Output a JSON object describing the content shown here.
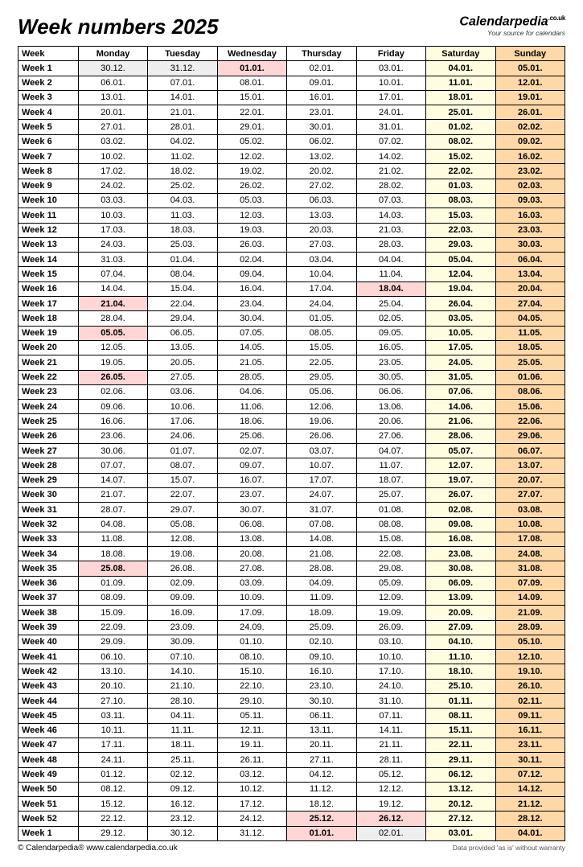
{
  "title": "Week numbers 2025",
  "brand": {
    "name": "Calendarpedia",
    "domain": ".co.uk",
    "tagline": "Your source for calendars"
  },
  "columns": [
    "Week",
    "Monday",
    "Tuesday",
    "Wednesday",
    "Thursday",
    "Friday",
    "Saturday",
    "Sunday"
  ],
  "colors": {
    "saturday_bg": "#fffce0",
    "sunday_bg": "#ffd8a8",
    "holiday_bg": "#ffd6d6",
    "prev_bg": "#eeeeee",
    "border": "#000000",
    "background": "#ffffff"
  },
  "footer": {
    "left": "© Calendarpedia®   www.calendarpedia.co.uk",
    "right": "Data provided 'as is' without warranty"
  },
  "rows": [
    {
      "w": "Week 1",
      "d": [
        "30.12.",
        "31.12.",
        "01.01.",
        "02.01.",
        "03.01.",
        "04.01.",
        "05.01."
      ],
      "cls": [
        "prev",
        "prev",
        "holiday",
        "",
        "",
        "sat",
        "sun"
      ]
    },
    {
      "w": "Week 2",
      "d": [
        "06.01.",
        "07.01.",
        "08.01.",
        "09.01.",
        "10.01.",
        "11.01.",
        "12.01."
      ],
      "cls": [
        "",
        "",
        "",
        "",
        "",
        "sat",
        "sun"
      ]
    },
    {
      "w": "Week 3",
      "d": [
        "13.01.",
        "14.01.",
        "15.01.",
        "16.01.",
        "17.01.",
        "18.01.",
        "19.01."
      ],
      "cls": [
        "",
        "",
        "",
        "",
        "",
        "sat",
        "sun"
      ]
    },
    {
      "w": "Week 4",
      "d": [
        "20.01.",
        "21.01.",
        "22.01.",
        "23.01.",
        "24.01.",
        "25.01.",
        "26.01."
      ],
      "cls": [
        "",
        "",
        "",
        "",
        "",
        "sat",
        "sun"
      ]
    },
    {
      "w": "Week 5",
      "d": [
        "27.01.",
        "28.01.",
        "29.01.",
        "30.01.",
        "31.01.",
        "01.02.",
        "02.02."
      ],
      "cls": [
        "",
        "",
        "",
        "",
        "",
        "sat",
        "sun"
      ]
    },
    {
      "w": "Week 6",
      "d": [
        "03.02.",
        "04.02.",
        "05.02.",
        "06.02.",
        "07.02.",
        "08.02.",
        "09.02."
      ],
      "cls": [
        "",
        "",
        "",
        "",
        "",
        "sat",
        "sun"
      ]
    },
    {
      "w": "Week 7",
      "d": [
        "10.02.",
        "11.02.",
        "12.02.",
        "13.02.",
        "14.02.",
        "15.02.",
        "16.02."
      ],
      "cls": [
        "",
        "",
        "",
        "",
        "",
        "sat",
        "sun"
      ]
    },
    {
      "w": "Week 8",
      "d": [
        "17.02.",
        "18.02.",
        "19.02.",
        "20.02.",
        "21.02.",
        "22.02.",
        "23.02."
      ],
      "cls": [
        "",
        "",
        "",
        "",
        "",
        "sat",
        "sun"
      ]
    },
    {
      "w": "Week 9",
      "d": [
        "24.02.",
        "25.02.",
        "26.02.",
        "27.02.",
        "28.02.",
        "01.03.",
        "02.03."
      ],
      "cls": [
        "",
        "",
        "",
        "",
        "",
        "sat",
        "sun"
      ]
    },
    {
      "w": "Week 10",
      "d": [
        "03.03.",
        "04.03.",
        "05.03.",
        "06.03.",
        "07.03.",
        "08.03.",
        "09.03."
      ],
      "cls": [
        "",
        "",
        "",
        "",
        "",
        "sat",
        "sun"
      ]
    },
    {
      "w": "Week 11",
      "d": [
        "10.03.",
        "11.03.",
        "12.03.",
        "13.03.",
        "14.03.",
        "15.03.",
        "16.03."
      ],
      "cls": [
        "",
        "",
        "",
        "",
        "",
        "sat",
        "sun"
      ]
    },
    {
      "w": "Week 12",
      "d": [
        "17.03.",
        "18.03.",
        "19.03.",
        "20.03.",
        "21.03.",
        "22.03.",
        "23.03."
      ],
      "cls": [
        "",
        "",
        "",
        "",
        "",
        "sat",
        "sun"
      ]
    },
    {
      "w": "Week 13",
      "d": [
        "24.03.",
        "25.03.",
        "26.03.",
        "27.03.",
        "28.03.",
        "29.03.",
        "30.03."
      ],
      "cls": [
        "",
        "",
        "",
        "",
        "",
        "sat",
        "sun"
      ]
    },
    {
      "w": "Week 14",
      "d": [
        "31.03.",
        "01.04.",
        "02.04.",
        "03.04.",
        "04.04.",
        "05.04.",
        "06.04."
      ],
      "cls": [
        "",
        "",
        "",
        "",
        "",
        "sat",
        "sun"
      ]
    },
    {
      "w": "Week 15",
      "d": [
        "07.04.",
        "08.04.",
        "09.04.",
        "10.04.",
        "11.04.",
        "12.04.",
        "13.04."
      ],
      "cls": [
        "",
        "",
        "",
        "",
        "",
        "sat",
        "sun"
      ]
    },
    {
      "w": "Week 16",
      "d": [
        "14.04.",
        "15.04.",
        "16.04.",
        "17.04.",
        "18.04.",
        "19.04.",
        "20.04."
      ],
      "cls": [
        "",
        "",
        "",
        "",
        "holiday",
        "sat",
        "sun"
      ]
    },
    {
      "w": "Week 17",
      "d": [
        "21.04.",
        "22.04.",
        "23.04.",
        "24.04.",
        "25.04.",
        "26.04.",
        "27.04."
      ],
      "cls": [
        "holiday",
        "",
        "",
        "",
        "",
        "sat",
        "sun"
      ]
    },
    {
      "w": "Week 18",
      "d": [
        "28.04.",
        "29.04.",
        "30.04.",
        "01.05.",
        "02.05.",
        "03.05.",
        "04.05."
      ],
      "cls": [
        "",
        "",
        "",
        "",
        "",
        "sat",
        "sun"
      ]
    },
    {
      "w": "Week 19",
      "d": [
        "05.05.",
        "06.05.",
        "07.05.",
        "08.05.",
        "09.05.",
        "10.05.",
        "11.05."
      ],
      "cls": [
        "holiday",
        "",
        "",
        "",
        "",
        "sat",
        "sun"
      ]
    },
    {
      "w": "Week 20",
      "d": [
        "12.05.",
        "13.05.",
        "14.05.",
        "15.05.",
        "16.05.",
        "17.05.",
        "18.05."
      ],
      "cls": [
        "",
        "",
        "",
        "",
        "",
        "sat",
        "sun"
      ]
    },
    {
      "w": "Week 21",
      "d": [
        "19.05.",
        "20.05.",
        "21.05.",
        "22.05.",
        "23.05.",
        "24.05.",
        "25.05."
      ],
      "cls": [
        "",
        "",
        "",
        "",
        "",
        "sat",
        "sun"
      ]
    },
    {
      "w": "Week 22",
      "d": [
        "26.05.",
        "27.05.",
        "28.05.",
        "29.05.",
        "30.05.",
        "31.05.",
        "01.06."
      ],
      "cls": [
        "holiday",
        "",
        "",
        "",
        "",
        "sat",
        "sun"
      ]
    },
    {
      "w": "Week 23",
      "d": [
        "02.06.",
        "03.06.",
        "04.06.",
        "05.06.",
        "06.06.",
        "07.06.",
        "08.06."
      ],
      "cls": [
        "",
        "",
        "",
        "",
        "",
        "sat",
        "sun"
      ]
    },
    {
      "w": "Week 24",
      "d": [
        "09.06.",
        "10.06.",
        "11.06.",
        "12.06.",
        "13.06.",
        "14.06.",
        "15.06."
      ],
      "cls": [
        "",
        "",
        "",
        "",
        "",
        "sat",
        "sun"
      ]
    },
    {
      "w": "Week 25",
      "d": [
        "16.06.",
        "17.06.",
        "18.06.",
        "19.06.",
        "20.06.",
        "21.06.",
        "22.06."
      ],
      "cls": [
        "",
        "",
        "",
        "",
        "",
        "sat",
        "sun"
      ]
    },
    {
      "w": "Week 26",
      "d": [
        "23.06.",
        "24.06.",
        "25.06.",
        "26.06.",
        "27.06.",
        "28.06.",
        "29.06."
      ],
      "cls": [
        "",
        "",
        "",
        "",
        "",
        "sat",
        "sun"
      ]
    },
    {
      "w": "Week 27",
      "d": [
        "30.06.",
        "01.07.",
        "02.07.",
        "03.07.",
        "04.07.",
        "05.07.",
        "06.07."
      ],
      "cls": [
        "",
        "",
        "",
        "",
        "",
        "sat",
        "sun"
      ]
    },
    {
      "w": "Week 28",
      "d": [
        "07.07.",
        "08.07.",
        "09.07.",
        "10.07.",
        "11.07.",
        "12.07.",
        "13.07."
      ],
      "cls": [
        "",
        "",
        "",
        "",
        "",
        "sat",
        "sun"
      ]
    },
    {
      "w": "Week 29",
      "d": [
        "14.07.",
        "15.07.",
        "16.07.",
        "17.07.",
        "18.07.",
        "19.07.",
        "20.07."
      ],
      "cls": [
        "",
        "",
        "",
        "",
        "",
        "sat",
        "sun"
      ]
    },
    {
      "w": "Week 30",
      "d": [
        "21.07.",
        "22.07.",
        "23.07.",
        "24.07.",
        "25.07.",
        "26.07.",
        "27.07."
      ],
      "cls": [
        "",
        "",
        "",
        "",
        "",
        "sat",
        "sun"
      ]
    },
    {
      "w": "Week 31",
      "d": [
        "28.07.",
        "29.07.",
        "30.07.",
        "31.07.",
        "01.08.",
        "02.08.",
        "03.08."
      ],
      "cls": [
        "",
        "",
        "",
        "",
        "",
        "sat",
        "sun"
      ]
    },
    {
      "w": "Week 32",
      "d": [
        "04.08.",
        "05.08.",
        "06.08.",
        "07.08.",
        "08.08.",
        "09.08.",
        "10.08."
      ],
      "cls": [
        "",
        "",
        "",
        "",
        "",
        "sat",
        "sun"
      ]
    },
    {
      "w": "Week 33",
      "d": [
        "11.08.",
        "12.08.",
        "13.08.",
        "14.08.",
        "15.08.",
        "16.08.",
        "17.08."
      ],
      "cls": [
        "",
        "",
        "",
        "",
        "",
        "sat",
        "sun"
      ]
    },
    {
      "w": "Week 34",
      "d": [
        "18.08.",
        "19.08.",
        "20.08.",
        "21.08.",
        "22.08.",
        "23.08.",
        "24.08."
      ],
      "cls": [
        "",
        "",
        "",
        "",
        "",
        "sat",
        "sun"
      ]
    },
    {
      "w": "Week 35",
      "d": [
        "25.08.",
        "26.08.",
        "27.08.",
        "28.08.",
        "29.08.",
        "30.08.",
        "31.08."
      ],
      "cls": [
        "holiday",
        "",
        "",
        "",
        "",
        "sat",
        "sun"
      ]
    },
    {
      "w": "Week 36",
      "d": [
        "01.09.",
        "02.09.",
        "03.09.",
        "04.09.",
        "05.09.",
        "06.09.",
        "07.09."
      ],
      "cls": [
        "",
        "",
        "",
        "",
        "",
        "sat",
        "sun"
      ]
    },
    {
      "w": "Week 37",
      "d": [
        "08.09.",
        "09.09.",
        "10.09.",
        "11.09.",
        "12.09.",
        "13.09.",
        "14.09."
      ],
      "cls": [
        "",
        "",
        "",
        "",
        "",
        "sat",
        "sun"
      ]
    },
    {
      "w": "Week 38",
      "d": [
        "15.09.",
        "16.09.",
        "17.09.",
        "18.09.",
        "19.09.",
        "20.09.",
        "21.09."
      ],
      "cls": [
        "",
        "",
        "",
        "",
        "",
        "sat",
        "sun"
      ]
    },
    {
      "w": "Week 39",
      "d": [
        "22.09.",
        "23.09.",
        "24.09.",
        "25.09.",
        "26.09.",
        "27.09.",
        "28.09."
      ],
      "cls": [
        "",
        "",
        "",
        "",
        "",
        "sat",
        "sun"
      ]
    },
    {
      "w": "Week 40",
      "d": [
        "29.09.",
        "30.09.",
        "01.10.",
        "02.10.",
        "03.10.",
        "04.10.",
        "05.10."
      ],
      "cls": [
        "",
        "",
        "",
        "",
        "",
        "sat",
        "sun"
      ]
    },
    {
      "w": "Week 41",
      "d": [
        "06.10.",
        "07.10.",
        "08.10.",
        "09.10.",
        "10.10.",
        "11.10.",
        "12.10."
      ],
      "cls": [
        "",
        "",
        "",
        "",
        "",
        "sat",
        "sun"
      ]
    },
    {
      "w": "Week 42",
      "d": [
        "13.10.",
        "14.10.",
        "15.10.",
        "16.10.",
        "17.10.",
        "18.10.",
        "19.10."
      ],
      "cls": [
        "",
        "",
        "",
        "",
        "",
        "sat",
        "sun"
      ]
    },
    {
      "w": "Week 43",
      "d": [
        "20.10.",
        "21.10.",
        "22.10.",
        "23.10.",
        "24.10.",
        "25.10.",
        "26.10."
      ],
      "cls": [
        "",
        "",
        "",
        "",
        "",
        "sat",
        "sun"
      ]
    },
    {
      "w": "Week 44",
      "d": [
        "27.10.",
        "28.10.",
        "29.10.",
        "30.10.",
        "31.10.",
        "01.11.",
        "02.11."
      ],
      "cls": [
        "",
        "",
        "",
        "",
        "",
        "sat",
        "sun"
      ]
    },
    {
      "w": "Week 45",
      "d": [
        "03.11.",
        "04.11.",
        "05.11.",
        "06.11.",
        "07.11.",
        "08.11.",
        "09.11."
      ],
      "cls": [
        "",
        "",
        "",
        "",
        "",
        "sat",
        "sun"
      ]
    },
    {
      "w": "Week 46",
      "d": [
        "10.11.",
        "11.11.",
        "12.11.",
        "13.11.",
        "14.11.",
        "15.11.",
        "16.11."
      ],
      "cls": [
        "",
        "",
        "",
        "",
        "",
        "sat",
        "sun"
      ]
    },
    {
      "w": "Week 47",
      "d": [
        "17.11.",
        "18.11.",
        "19.11.",
        "20.11.",
        "21.11.",
        "22.11.",
        "23.11."
      ],
      "cls": [
        "",
        "",
        "",
        "",
        "",
        "sat",
        "sun"
      ]
    },
    {
      "w": "Week 48",
      "d": [
        "24.11.",
        "25.11.",
        "26.11.",
        "27.11.",
        "28.11.",
        "29.11.",
        "30.11."
      ],
      "cls": [
        "",
        "",
        "",
        "",
        "",
        "sat",
        "sun"
      ]
    },
    {
      "w": "Week 49",
      "d": [
        "01.12.",
        "02.12.",
        "03.12.",
        "04.12.",
        "05.12.",
        "06.12.",
        "07.12."
      ],
      "cls": [
        "",
        "",
        "",
        "",
        "",
        "sat",
        "sun"
      ]
    },
    {
      "w": "Week 50",
      "d": [
        "08.12.",
        "09.12.",
        "10.12.",
        "11.12.",
        "12.12.",
        "13.12.",
        "14.12."
      ],
      "cls": [
        "",
        "",
        "",
        "",
        "",
        "sat",
        "sun"
      ]
    },
    {
      "w": "Week 51",
      "d": [
        "15.12.",
        "16.12.",
        "17.12.",
        "18.12.",
        "19.12.",
        "20.12.",
        "21.12."
      ],
      "cls": [
        "",
        "",
        "",
        "",
        "",
        "sat",
        "sun"
      ]
    },
    {
      "w": "Week 52",
      "d": [
        "22.12.",
        "23.12.",
        "24.12.",
        "25.12.",
        "26.12.",
        "27.12.",
        "28.12."
      ],
      "cls": [
        "",
        "",
        "",
        "holiday",
        "holiday",
        "sat",
        "sun"
      ]
    },
    {
      "w": "Week 1",
      "d": [
        "29.12.",
        "30.12.",
        "31.12.",
        "01.01.",
        "02.01.",
        "03.01.",
        "04.01."
      ],
      "cls": [
        "",
        "",
        "",
        "holiday",
        "prev",
        "sat",
        "sun"
      ]
    }
  ]
}
